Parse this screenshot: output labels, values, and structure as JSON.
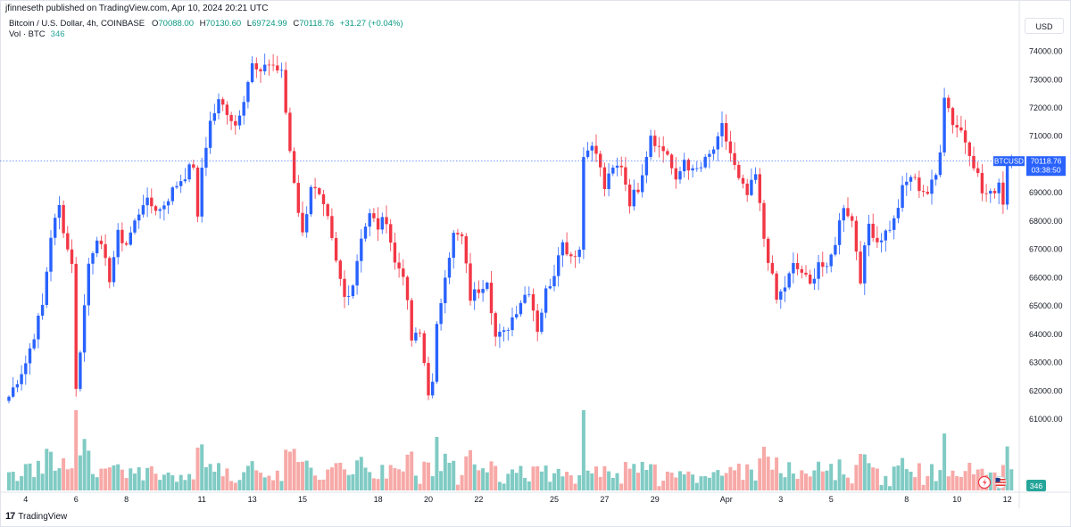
{
  "publisher": "jfinneseth published on TradingView.com, Apr 10, 2024 20:21 UTC",
  "legend": {
    "symbol": "Bitcoin / U.S. Dollar, 4h, COINBASE",
    "o_label": "O",
    "o": "70088.00",
    "h_label": "H",
    "h": "70130.60",
    "l_label": "L",
    "l": "69724.99",
    "c_label": "C",
    "c": "70118.76",
    "change": "+31.27 (+0.04%)",
    "vol_label": "Vol · BTC",
    "vol_value": "346"
  },
  "currency": "USD",
  "price_tag": {
    "symbol": "BTCUSD",
    "price": "70118.76",
    "countdown": "03:38:50"
  },
  "vol_tag": "346",
  "footer": {
    "brand": "TradingView"
  },
  "colors": {
    "up": "#2962ff",
    "down": "#f23645",
    "vol_up": "#80cbc4",
    "vol_down": "#f7a9a7",
    "last_line": "#2962ff"
  },
  "chart_data": {
    "type": "candlestick",
    "interval": "4h",
    "ylim": [
      60500,
      74300
    ],
    "y_ticks": [
      61000,
      62000,
      63000,
      64000,
      65000,
      66000,
      67000,
      68000,
      69000,
      70000,
      71000,
      72000,
      73000,
      74000
    ],
    "y_tick_labels": [
      "61000.00",
      "62000.00",
      "63000.00",
      "64000.00",
      "65000.00",
      "66000.00",
      "67000.00",
      "68000.00",
      "69000.00",
      "70000.00",
      "71000.00",
      "72000.00",
      "73000.00",
      "74000.00"
    ],
    "x_labels": [
      {
        "label": "4",
        "index": 4
      },
      {
        "label": "6",
        "index": 16
      },
      {
        "label": "8",
        "index": 28
      },
      {
        "label": "11",
        "index": 46
      },
      {
        "label": "13",
        "index": 58
      },
      {
        "label": "15",
        "index": 70
      },
      {
        "label": "18",
        "index": 88
      },
      {
        "label": "20",
        "index": 100
      },
      {
        "label": "22",
        "index": 112
      },
      {
        "label": "25",
        "index": 130
      },
      {
        "label": "27",
        "index": 142
      },
      {
        "label": "29",
        "index": 154
      },
      {
        "label": "Apr",
        "index": 171
      },
      {
        "label": "3",
        "index": 184
      },
      {
        "label": "5",
        "index": 196
      },
      {
        "label": "8",
        "index": 214
      },
      {
        "label": "10",
        "index": 226
      },
      {
        "label": "12",
        "index": 238
      }
    ],
    "last_price": 70118.76,
    "anchors": [
      [
        0,
        61800
      ],
      [
        4,
        63000
      ],
      [
        8,
        65000
      ],
      [
        10,
        67500
      ],
      [
        12,
        68500
      ],
      [
        14,
        67000
      ],
      [
        15,
        66600
      ],
      [
        16,
        62000
      ],
      [
        17,
        63500
      ],
      [
        19,
        66500
      ],
      [
        21,
        67500
      ],
      [
        24,
        66000
      ],
      [
        26,
        67500
      ],
      [
        28,
        67200
      ],
      [
        32,
        68700
      ],
      [
        36,
        68400
      ],
      [
        40,
        69300
      ],
      [
        44,
        70000
      ],
      [
        45,
        68000
      ],
      [
        46,
        69900
      ],
      [
        48,
        71500
      ],
      [
        50,
        72200
      ],
      [
        52,
        71900
      ],
      [
        54,
        71400
      ],
      [
        56,
        72400
      ],
      [
        58,
        73500
      ],
      [
        60,
        73100
      ],
      [
        61,
        73600
      ],
      [
        63,
        73500
      ],
      [
        65,
        73200
      ],
      [
        67,
        70500
      ],
      [
        69,
        68400
      ],
      [
        70,
        67500
      ],
      [
        72,
        69300
      ],
      [
        74,
        68800
      ],
      [
        76,
        68000
      ],
      [
        78,
        66500
      ],
      [
        80,
        65300
      ],
      [
        82,
        65800
      ],
      [
        84,
        67500
      ],
      [
        86,
        68200
      ],
      [
        88,
        67800
      ],
      [
        90,
        68100
      ],
      [
        92,
        66500
      ],
      [
        94,
        66200
      ],
      [
        96,
        63800
      ],
      [
        98,
        64000
      ],
      [
        100,
        62000
      ],
      [
        101,
        62200
      ],
      [
        102,
        64200
      ],
      [
        104,
        66200
      ],
      [
        106,
        67500
      ],
      [
        108,
        67400
      ],
      [
        110,
        65300
      ],
      [
        112,
        65600
      ],
      [
        114,
        66000
      ],
      [
        116,
        63900
      ],
      [
        118,
        64000
      ],
      [
        120,
        64600
      ],
      [
        122,
        65200
      ],
      [
        124,
        65600
      ],
      [
        126,
        64200
      ],
      [
        128,
        65500
      ],
      [
        130,
        66200
      ],
      [
        131,
        67000
      ],
      [
        132,
        67200
      ],
      [
        134,
        66800
      ],
      [
        136,
        67000
      ],
      [
        137,
        70300
      ],
      [
        138,
        70700
      ],
      [
        140,
        70400
      ],
      [
        142,
        69200
      ],
      [
        144,
        69800
      ],
      [
        146,
        70000
      ],
      [
        148,
        68700
      ],
      [
        150,
        69200
      ],
      [
        152,
        70400
      ],
      [
        153,
        71100
      ],
      [
        155,
        70600
      ],
      [
        157,
        70400
      ],
      [
        159,
        69300
      ],
      [
        161,
        70200
      ],
      [
        163,
        69700
      ],
      [
        165,
        69900
      ],
      [
        167,
        70300
      ],
      [
        169,
        70800
      ],
      [
        170,
        71300
      ],
      [
        172,
        70400
      ],
      [
        174,
        69400
      ],
      [
        176,
        68900
      ],
      [
        178,
        69600
      ],
      [
        180,
        67400
      ],
      [
        181,
        66700
      ],
      [
        183,
        65200
      ],
      [
        185,
        65700
      ],
      [
        187,
        66400
      ],
      [
        189,
        66200
      ],
      [
        191,
        65700
      ],
      [
        193,
        66600
      ],
      [
        195,
        66200
      ],
      [
        197,
        67300
      ],
      [
        199,
        68600
      ],
      [
        201,
        68000
      ],
      [
        203,
        66000
      ],
      [
        205,
        67900
      ],
      [
        207,
        67300
      ],
      [
        209,
        67600
      ],
      [
        211,
        68000
      ],
      [
        213,
        69100
      ],
      [
        215,
        69600
      ],
      [
        217,
        69200
      ],
      [
        219,
        69000
      ],
      [
        221,
        69600
      ],
      [
        222,
        70600
      ],
      [
        223,
        72500
      ],
      [
        225,
        71500
      ],
      [
        227,
        71200
      ],
      [
        229,
        70500
      ],
      [
        231,
        69600
      ],
      [
        232,
        69000
      ],
      [
        234,
        68900
      ],
      [
        236,
        69400
      ],
      [
        237,
        68700
      ],
      [
        238,
        70000
      ],
      [
        239,
        70118.76
      ]
    ],
    "count": 240
  }
}
